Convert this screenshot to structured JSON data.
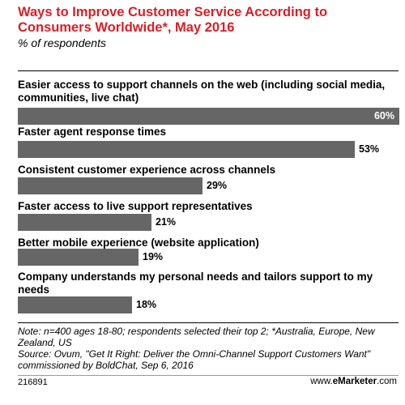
{
  "chart_data": {
    "type": "bar",
    "orientation": "horizontal",
    "title": "Ways to Improve Customer Service According to Consumers Worldwide*, May 2016",
    "subtitle": "% of respondents",
    "categories": [
      "Easier access to support channels on the web (including social media, communities, live chat)",
      "Faster agent response times",
      "Consistent customer experience across channels",
      "Faster access to live support representatives",
      "Better mobile experience (website application)",
      "Company understands my personal needs and tailors support to my needs"
    ],
    "values": [
      60,
      53,
      29,
      21,
      19,
      18
    ],
    "value_labels": [
      "60%",
      "53%",
      "29%",
      "21%",
      "19%",
      "18%"
    ],
    "xlim": [
      0,
      60
    ],
    "bar_color": "#666666",
    "title_color": "#d81f27"
  },
  "note": "Note: n=400 ages 18-80; respondents selected their top 2; *Australia, Europe, New Zealand, US",
  "source": "Source: Ovum, \"Get It Right: Deliver the Omni-Channel Support Customers Want\" commissioned by BoldChat, Sep 6, 2016",
  "footer": {
    "chart_id": "216891",
    "site_prefix": "www.",
    "brand_bold": "eMarketer",
    "site_suffix": ".com"
  }
}
